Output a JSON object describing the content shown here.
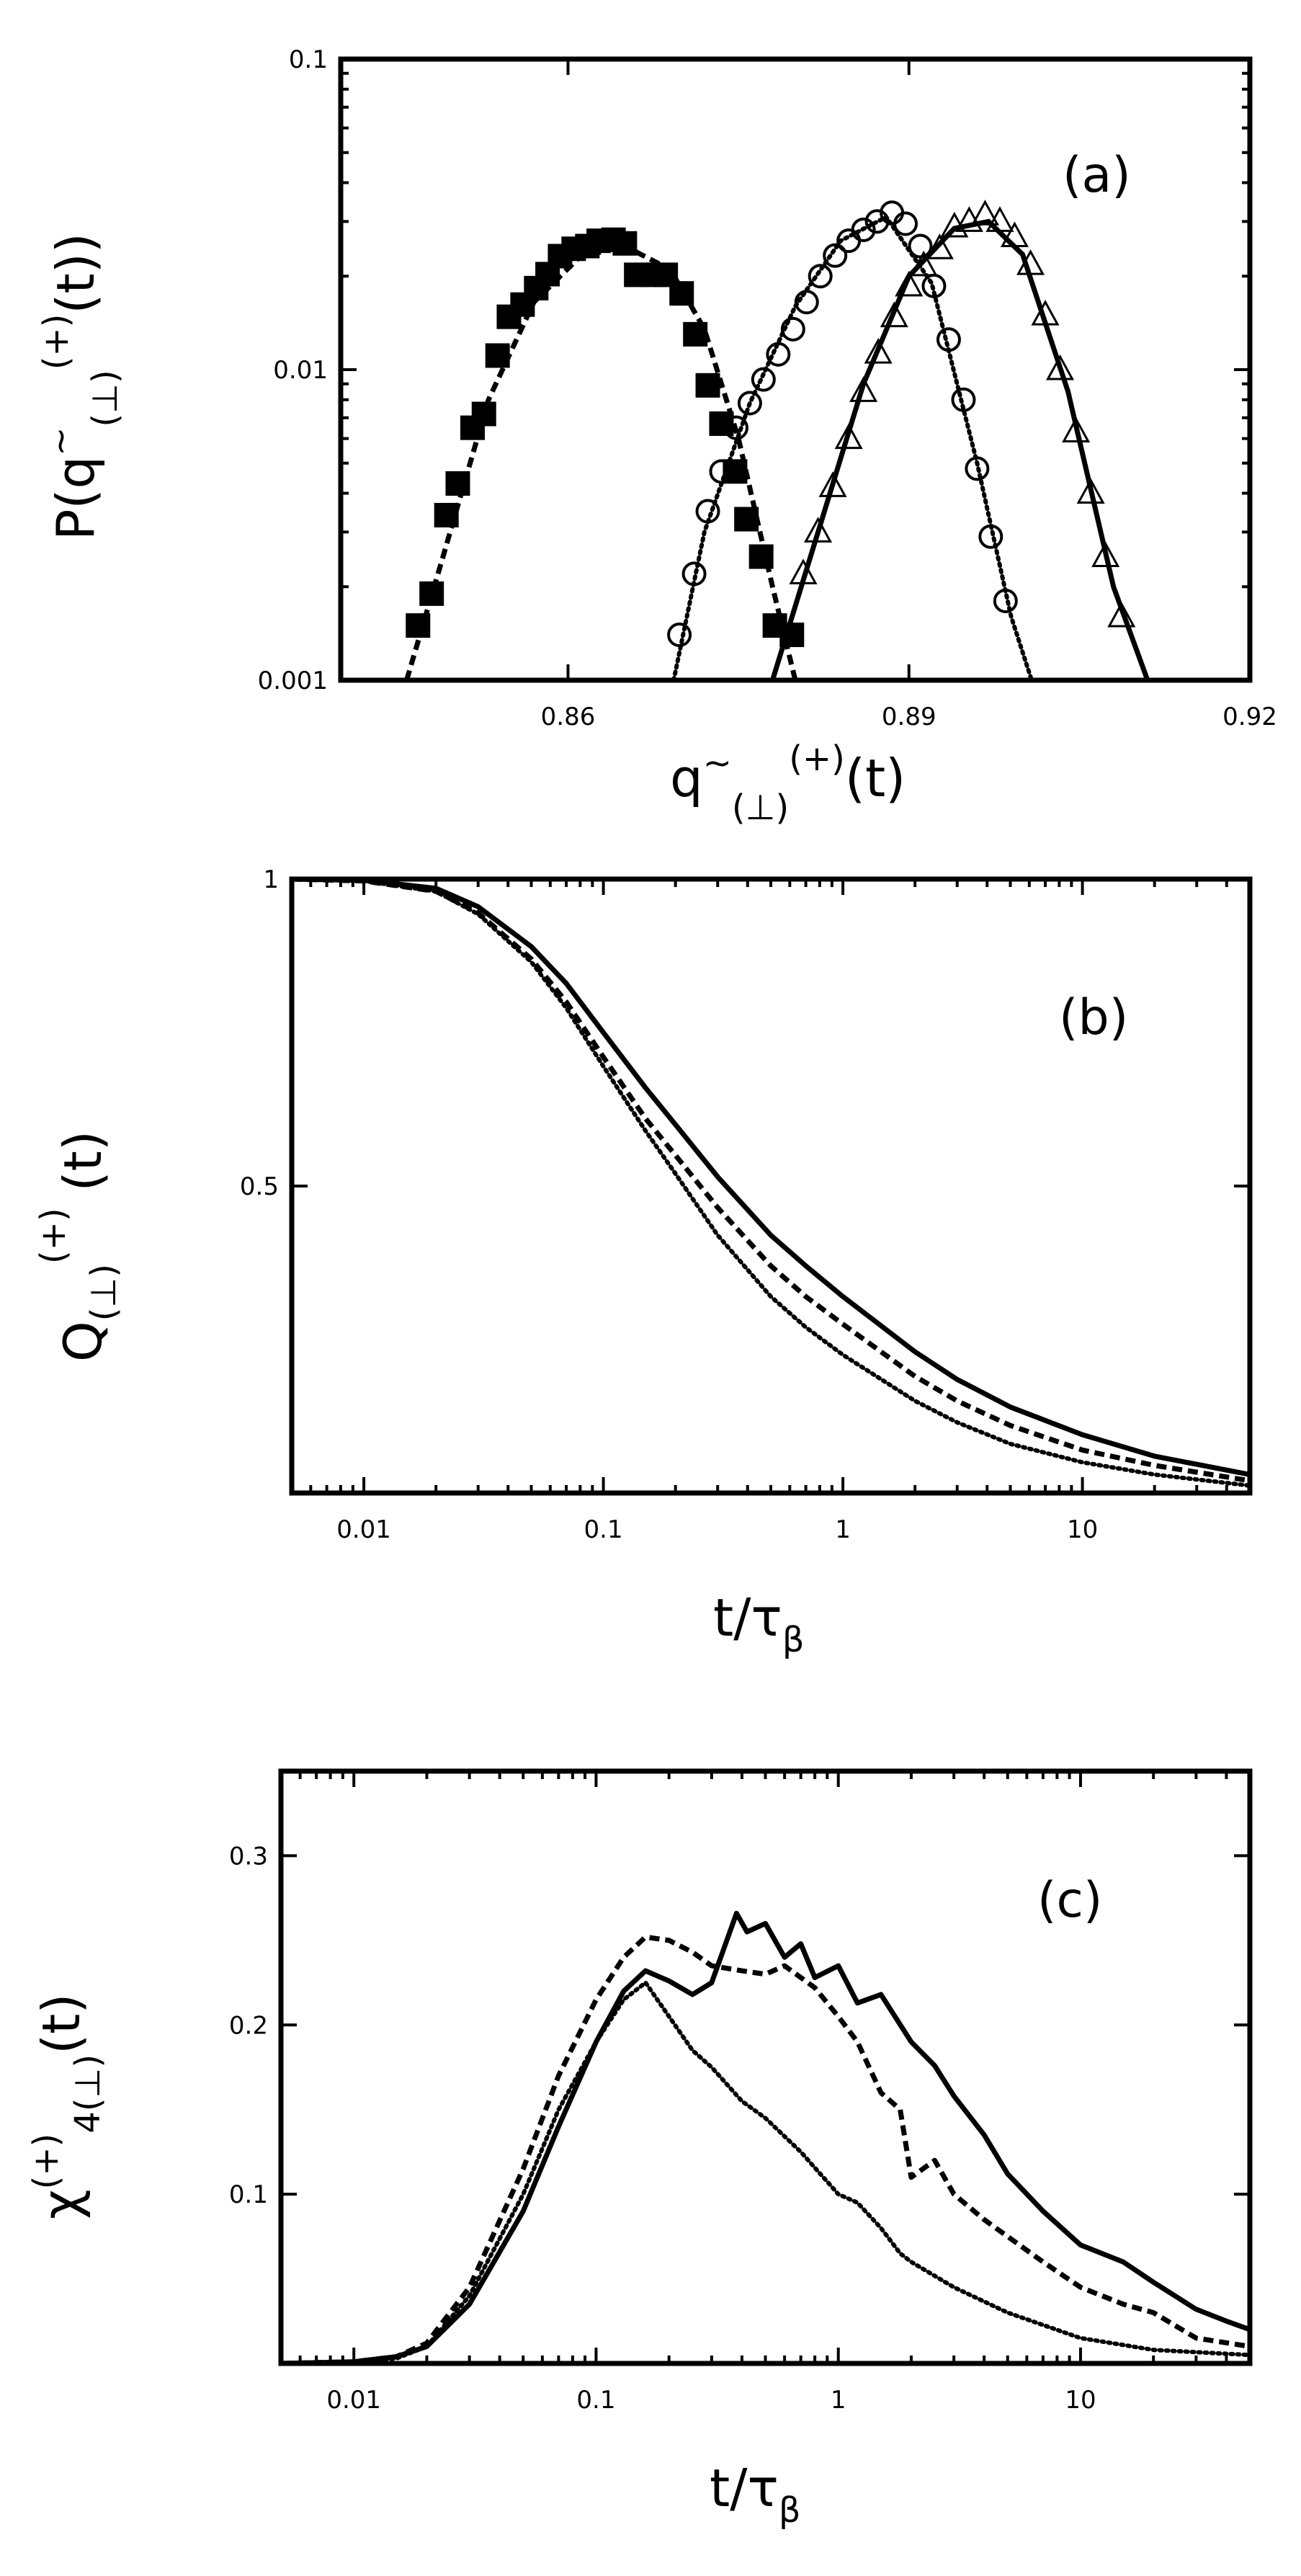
{
  "chart_data": [
    {
      "panel": "(a)",
      "type": "scatter",
      "xlabel": {
        "base": "q",
        "tilde": "~",
        "sub": "(⊥)",
        "sup": "(+)",
        "tail": "(t)"
      },
      "ylabel": {
        "pre": "P(q",
        "tilde": "~",
        "sub": "(⊥)",
        "sup": "(+)",
        "tail": "(t))"
      },
      "xlim": [
        0.84,
        0.92
      ],
      "ylim": [
        0.001,
        0.1
      ],
      "yscale": "log",
      "xticks": [
        0.86,
        0.89,
        0.92
      ],
      "xtick_labels": [
        "0.86",
        "0.89",
        "0.92"
      ],
      "yticks": [
        0.001,
        0.01,
        0.1
      ],
      "ytick_labels": [
        "0.001",
        "0.01",
        "0.1"
      ],
      "series": [
        {
          "marker": "filled-square",
          "line": "dashed",
          "x": [
            0.8468,
            0.848,
            0.8493,
            0.8503,
            0.8516,
            0.8526,
            0.8538,
            0.8548,
            0.856,
            0.8572,
            0.8582,
            0.8593,
            0.8605,
            0.8617,
            0.8627,
            0.864,
            0.865,
            0.866,
            0.8675,
            0.8686,
            0.87,
            0.8712,
            0.8723,
            0.8735,
            0.8747,
            0.8757,
            0.877,
            0.8782,
            0.8797
          ],
          "y": [
            0.0015,
            0.0019,
            0.0034,
            0.0043,
            0.0065,
            0.0072,
            0.0111,
            0.0148,
            0.0162,
            0.0183,
            0.0203,
            0.0232,
            0.0245,
            0.025,
            0.026,
            0.0262,
            0.0255,
            0.0202,
            0.0202,
            0.0202,
            0.0176,
            0.013,
            0.0089,
            0.0067,
            0.0047,
            0.0033,
            0.0025,
            0.0015,
            0.0014
          ],
          "curve_x": [
            0.8458,
            0.849,
            0.853,
            0.857,
            0.861,
            0.865,
            0.869,
            0.872,
            0.875,
            0.878,
            0.88
          ],
          "curve_y": [
            0.001,
            0.0025,
            0.008,
            0.0165,
            0.023,
            0.025,
            0.021,
            0.0135,
            0.006,
            0.002,
            0.001
          ]
        },
        {
          "marker": "open-circle",
          "line": "dotted",
          "x": [
            0.8698,
            0.8711,
            0.8723,
            0.8735,
            0.8748,
            0.876,
            0.8772,
            0.8785,
            0.8798,
            0.881,
            0.8822,
            0.8835,
            0.8847,
            0.886,
            0.8872,
            0.8885,
            0.8897,
            0.891,
            0.8922,
            0.8935,
            0.8948,
            0.896,
            0.8972,
            0.8985
          ],
          "y": [
            0.0014,
            0.0022,
            0.0035,
            0.0047,
            0.0065,
            0.0078,
            0.0093,
            0.0112,
            0.0135,
            0.0165,
            0.02,
            0.0233,
            0.026,
            0.0282,
            0.03,
            0.032,
            0.0295,
            0.025,
            0.0186,
            0.0125,
            0.008,
            0.0048,
            0.0029,
            0.0018
          ],
          "curve_x": [
            0.8693,
            0.872,
            0.876,
            0.88,
            0.884,
            0.888,
            0.892,
            0.896,
            0.899,
            0.9008
          ],
          "curve_y": [
            0.001,
            0.003,
            0.0078,
            0.016,
            0.026,
            0.031,
            0.019,
            0.005,
            0.0016,
            0.001
          ]
        },
        {
          "marker": "open-triangle",
          "line": "solid",
          "x": [
            0.8807,
            0.882,
            0.8833,
            0.8847,
            0.886,
            0.8873,
            0.8887,
            0.89,
            0.8913,
            0.8927,
            0.894,
            0.8953,
            0.8967,
            0.898,
            0.8993,
            0.9007,
            0.902,
            0.9033,
            0.9047,
            0.906,
            0.9073,
            0.9087
          ],
          "y": [
            0.0022,
            0.003,
            0.0042,
            0.006,
            0.0085,
            0.0113,
            0.0148,
            0.0186,
            0.0216,
            0.0245,
            0.0288,
            0.03,
            0.0315,
            0.03,
            0.0268,
            0.0218,
            0.015,
            0.01,
            0.0063,
            0.004,
            0.0025,
            0.0016
          ],
          "curve_x": [
            0.878,
            0.882,
            0.886,
            0.89,
            0.894,
            0.897,
            0.9,
            0.904,
            0.908,
            0.911
          ],
          "curve_y": [
            0.001,
            0.003,
            0.009,
            0.02,
            0.0285,
            0.03,
            0.0235,
            0.0085,
            0.002,
            0.001
          ]
        }
      ]
    },
    {
      "panel": "(b)",
      "type": "line",
      "xlabel": {
        "base": "t/τ",
        "sub": "β"
      },
      "ylabel": {
        "base": "Q",
        "sub": "(⊥)",
        "sup": "(+)",
        "tail": " (t)"
      },
      "xscale": "log",
      "xlim": [
        0.005,
        50
      ],
      "ylim": [
        0.0,
        1.0
      ],
      "xticks": [
        0.01,
        0.1,
        1,
        10
      ],
      "xtick_labels": [
        "0.01",
        "0.1",
        "1",
        "10"
      ],
      "yticks": [
        0.5,
        1.0
      ],
      "ytick_labels": [
        "0.5",
        "1"
      ],
      "series": [
        {
          "style": "solid",
          "x": [
            0.005,
            0.01,
            0.02,
            0.03,
            0.05,
            0.07,
            0.1,
            0.15,
            0.2,
            0.3,
            0.5,
            0.7,
            1,
            2,
            3,
            5,
            10,
            20,
            50
          ],
          "y": [
            1.0,
            0.998,
            0.985,
            0.955,
            0.89,
            0.83,
            0.75,
            0.66,
            0.6,
            0.515,
            0.42,
            0.37,
            0.32,
            0.23,
            0.185,
            0.14,
            0.095,
            0.06,
            0.03
          ]
        },
        {
          "style": "dashed",
          "x": [
            0.005,
            0.01,
            0.02,
            0.03,
            0.05,
            0.07,
            0.1,
            0.15,
            0.2,
            0.3,
            0.5,
            0.7,
            1,
            2,
            3,
            5,
            10,
            20,
            50
          ],
          "y": [
            1.0,
            0.997,
            0.98,
            0.945,
            0.87,
            0.8,
            0.71,
            0.61,
            0.55,
            0.465,
            0.37,
            0.32,
            0.275,
            0.19,
            0.15,
            0.11,
            0.07,
            0.045,
            0.02
          ]
        },
        {
          "style": "dotted",
          "x": [
            0.005,
            0.01,
            0.02,
            0.03,
            0.05,
            0.07,
            0.1,
            0.15,
            0.2,
            0.3,
            0.5,
            0.7,
            1,
            2,
            3,
            5,
            10,
            20,
            50
          ],
          "y": [
            1.0,
            0.997,
            0.98,
            0.943,
            0.865,
            0.79,
            0.695,
            0.59,
            0.52,
            0.42,
            0.32,
            0.27,
            0.225,
            0.15,
            0.115,
            0.08,
            0.05,
            0.03,
            0.012
          ]
        }
      ]
    },
    {
      "panel": "(c)",
      "type": "line",
      "xlabel": {
        "base": "t/τ",
        "sub": "β"
      },
      "ylabel": {
        "base": "χ",
        "sup": "(+)",
        "sub": "4(⊥)",
        "tail": "(t)"
      },
      "xscale": "log",
      "xlim": [
        0.005,
        50
      ],
      "ylim": [
        0.0,
        0.35
      ],
      "xticks": [
        0.01,
        0.1,
        1,
        10
      ],
      "xtick_labels": [
        "0.01",
        "0.1",
        "1",
        "10"
      ],
      "yticks": [
        0.1,
        0.2,
        0.3
      ],
      "ytick_labels": [
        "0.1",
        "0.2",
        "0.3"
      ],
      "series": [
        {
          "style": "solid",
          "x": [
            0.005,
            0.01,
            0.015,
            0.02,
            0.03,
            0.05,
            0.07,
            0.1,
            0.13,
            0.16,
            0.2,
            0.25,
            0.3,
            0.38,
            0.42,
            0.5,
            0.6,
            0.7,
            0.8,
            1.0,
            1.2,
            1.5,
            2,
            2.5,
            3,
            4,
            5,
            7,
            10,
            15,
            20,
            30,
            40,
            50
          ],
          "y": [
            0.0,
            0.001,
            0.004,
            0.01,
            0.035,
            0.09,
            0.14,
            0.19,
            0.22,
            0.232,
            0.226,
            0.218,
            0.225,
            0.266,
            0.255,
            0.26,
            0.24,
            0.248,
            0.228,
            0.235,
            0.213,
            0.218,
            0.19,
            0.176,
            0.158,
            0.135,
            0.112,
            0.09,
            0.07,
            0.06,
            0.048,
            0.032,
            0.025,
            0.02
          ]
        },
        {
          "style": "dashed",
          "x": [
            0.005,
            0.01,
            0.015,
            0.02,
            0.03,
            0.05,
            0.07,
            0.1,
            0.13,
            0.16,
            0.2,
            0.25,
            0.3,
            0.4,
            0.5,
            0.6,
            0.8,
            1.0,
            1.2,
            1.5,
            1.8,
            2.0,
            2.5,
            3,
            4,
            5,
            7,
            10,
            15,
            20,
            30,
            50
          ],
          "y": [
            0.0,
            0.001,
            0.004,
            0.012,
            0.045,
            0.115,
            0.17,
            0.215,
            0.24,
            0.252,
            0.25,
            0.243,
            0.235,
            0.232,
            0.23,
            0.235,
            0.222,
            0.205,
            0.19,
            0.16,
            0.15,
            0.11,
            0.12,
            0.1,
            0.085,
            0.075,
            0.06,
            0.045,
            0.035,
            0.03,
            0.015,
            0.01
          ]
        },
        {
          "style": "dotted",
          "x": [
            0.005,
            0.01,
            0.015,
            0.02,
            0.03,
            0.05,
            0.07,
            0.1,
            0.13,
            0.16,
            0.2,
            0.25,
            0.3,
            0.4,
            0.5,
            0.7,
            1.0,
            1.2,
            1.5,
            1.8,
            2,
            3,
            5,
            10,
            20,
            50
          ],
          "y": [
            0.0,
            0.001,
            0.003,
            0.01,
            0.04,
            0.1,
            0.15,
            0.19,
            0.215,
            0.225,
            0.205,
            0.185,
            0.175,
            0.155,
            0.145,
            0.125,
            0.1,
            0.095,
            0.08,
            0.065,
            0.06,
            0.045,
            0.03,
            0.015,
            0.008,
            0.005
          ]
        }
      ]
    }
  ]
}
